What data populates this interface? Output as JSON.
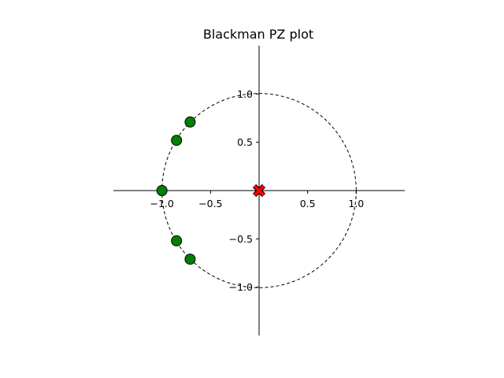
{
  "chart_data": {
    "type": "scatter",
    "title": "Blackman PZ plot",
    "xlabel": "",
    "ylabel": "",
    "xlim": [
      -1.5,
      1.5
    ],
    "ylim": [
      -1.5,
      1.5
    ],
    "grid": false,
    "legend": "none",
    "unit_circle": {
      "radius": 1.0,
      "style": "dashed",
      "color": "#000000"
    },
    "x_ticks": [
      {
        "value": -1.0,
        "label": "−1.0"
      },
      {
        "value": -0.5,
        "label": "−0.5"
      },
      {
        "value": 0.5,
        "label": "0.5"
      },
      {
        "value": 1.0,
        "label": "1.0"
      }
    ],
    "y_ticks": [
      {
        "value": 1.0,
        "label": "1.0"
      },
      {
        "value": 0.5,
        "label": "0.5"
      },
      {
        "value": -0.5,
        "label": "−0.5"
      },
      {
        "value": -1.0,
        "label": "−1.0"
      }
    ],
    "zeros": {
      "marker": "circle",
      "color": "#008000",
      "edge_color": "#000000",
      "points": [
        {
          "x": -0.71,
          "y": 0.71
        },
        {
          "x": -0.85,
          "y": 0.52
        },
        {
          "x": -1.0,
          "y": 0.0
        },
        {
          "x": -0.85,
          "y": -0.52
        },
        {
          "x": -0.71,
          "y": -0.71
        }
      ]
    },
    "poles": {
      "marker": "x",
      "color": "#ff0000",
      "edge_color": "#000000",
      "points": [
        {
          "x": 0.0,
          "y": 0.0
        }
      ]
    }
  }
}
